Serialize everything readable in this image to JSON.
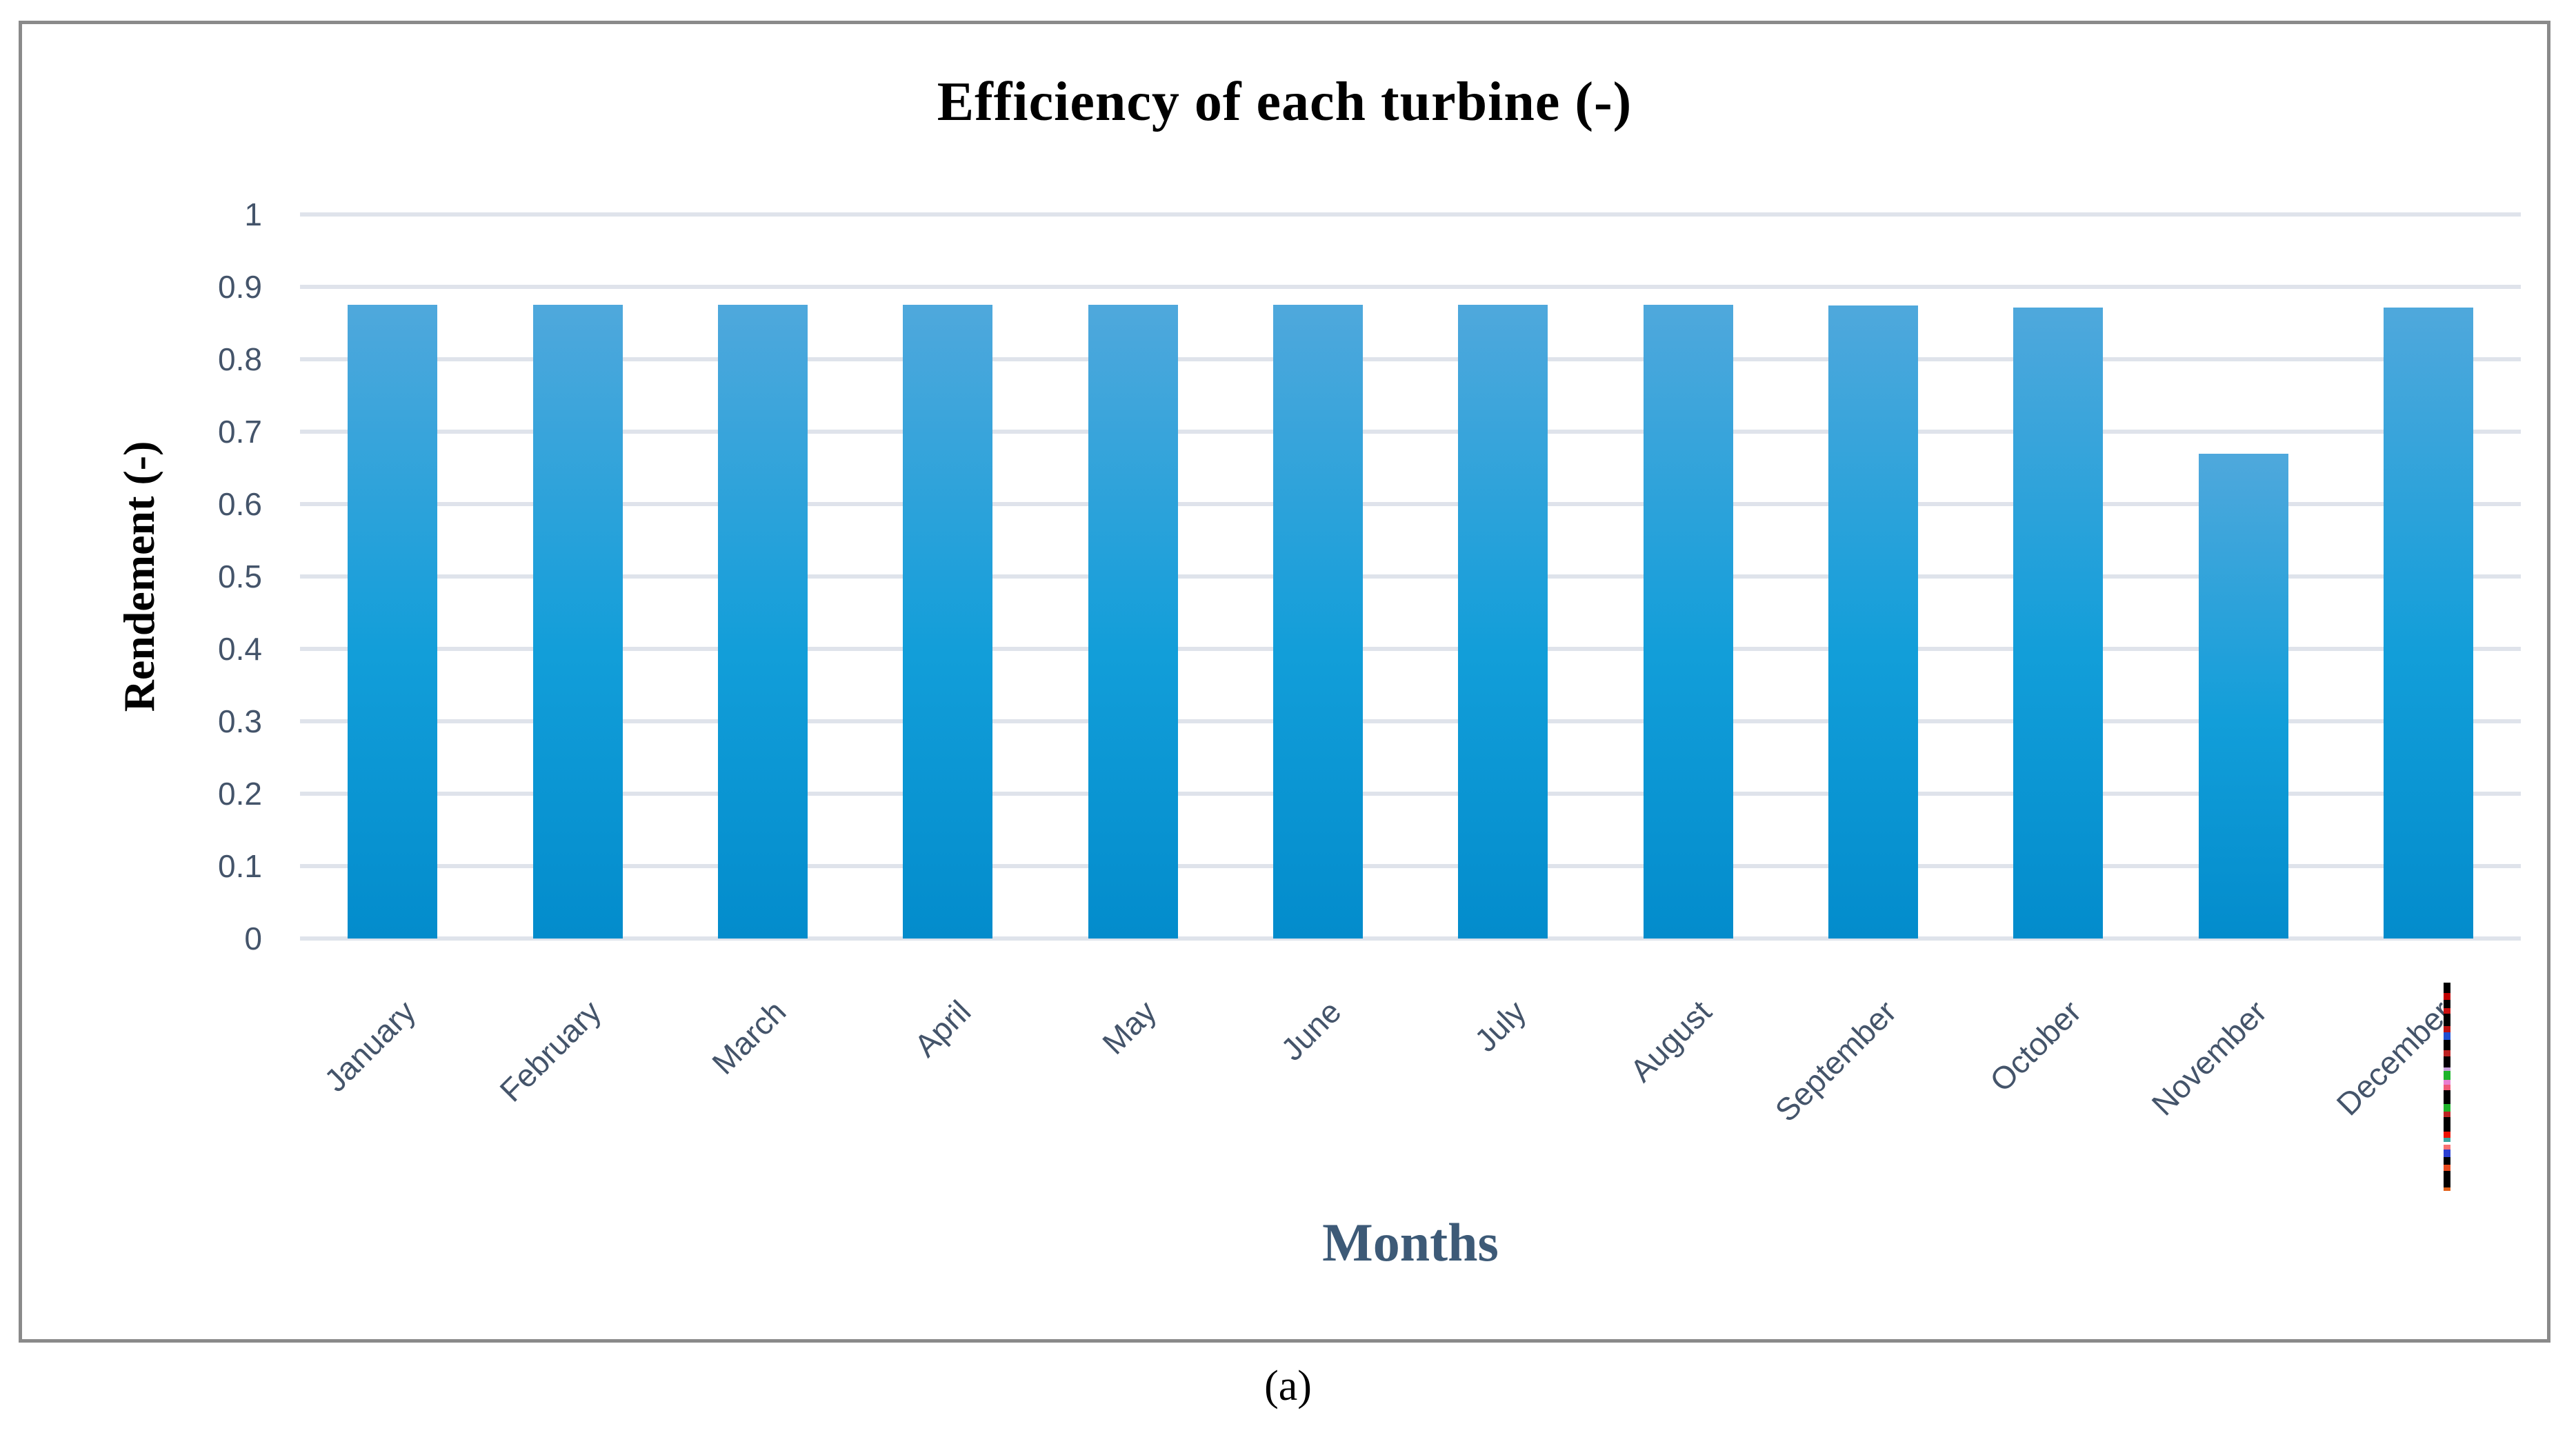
{
  "figure": {
    "caption": "(a)"
  },
  "chart_data": {
    "type": "bar",
    "title": "Efficiency of each turbine (-)",
    "xlabel": "Months",
    "ylabel": "Rendement (-)",
    "categories": [
      "January",
      "February",
      "March",
      "April",
      "May",
      "June",
      "July",
      "August",
      "September",
      "October",
      "November",
      "December"
    ],
    "values": [
      0.875,
      0.875,
      0.875,
      0.875,
      0.875,
      0.875,
      0.875,
      0.875,
      0.874,
      0.871,
      0.67,
      0.871
    ],
    "ylim": [
      0,
      1
    ],
    "ytick_step": 0.1,
    "ytick_labels": [
      "0",
      "0.1",
      "0.2",
      "0.3",
      "0.4",
      "0.5",
      "0.6",
      "0.7",
      "0.8",
      "0.9",
      "1"
    ],
    "grid": "horizontal",
    "legend_position": "none",
    "colors": {
      "bar_gradient_top": "#4FA8DC",
      "bar_gradient_mid": "#129ED9",
      "bar_gradient_bottom": "#038CCC",
      "gridline": "#DFE3EB",
      "tick_label": "#44546A",
      "axis_title": "#3D5A77",
      "frame_border": "#8A8A8A"
    }
  },
  "edge_mark": {
    "segments": [
      {
        "color": "#000000",
        "w": 22
      },
      {
        "color": "#c00000",
        "w": 14
      },
      {
        "color": "#000000",
        "w": 18
      },
      {
        "color": "#cc1111",
        "w": 12
      },
      {
        "color": "#000000",
        "w": 26
      },
      {
        "color": "#bb1111",
        "w": 14
      },
      {
        "color": "#1f4fd0",
        "w": 16
      },
      {
        "color": "#000000",
        "w": 22
      },
      {
        "color": "#bb2222",
        "w": 12
      },
      {
        "color": "#000000",
        "w": 24
      },
      {
        "color": "#c9a0dc",
        "w": 8
      },
      {
        "color": "#1db32a",
        "w": 18
      },
      {
        "color": "#e87fd0",
        "w": 10
      },
      {
        "color": "#ef5a77",
        "w": 12
      },
      {
        "color": "#000000",
        "w": 30
      },
      {
        "color": "#1db32a",
        "w": 16
      },
      {
        "color": "#bb2222",
        "w": 12
      },
      {
        "color": "#000000",
        "w": 30
      },
      {
        "color": "#ee1100",
        "w": 14
      },
      {
        "color": "#3aa6a0",
        "w": 8
      },
      {
        "color": "#ffffff",
        "w": 6
      },
      {
        "color": "#f87171",
        "w": 10
      },
      {
        "color": "#2b3fd1",
        "w": 16
      },
      {
        "color": "#000000",
        "w": 16
      },
      {
        "color": "#e8491d",
        "w": 14
      },
      {
        "color": "#000000",
        "w": 34
      },
      {
        "color": "#e2621b",
        "w": 8
      }
    ]
  }
}
